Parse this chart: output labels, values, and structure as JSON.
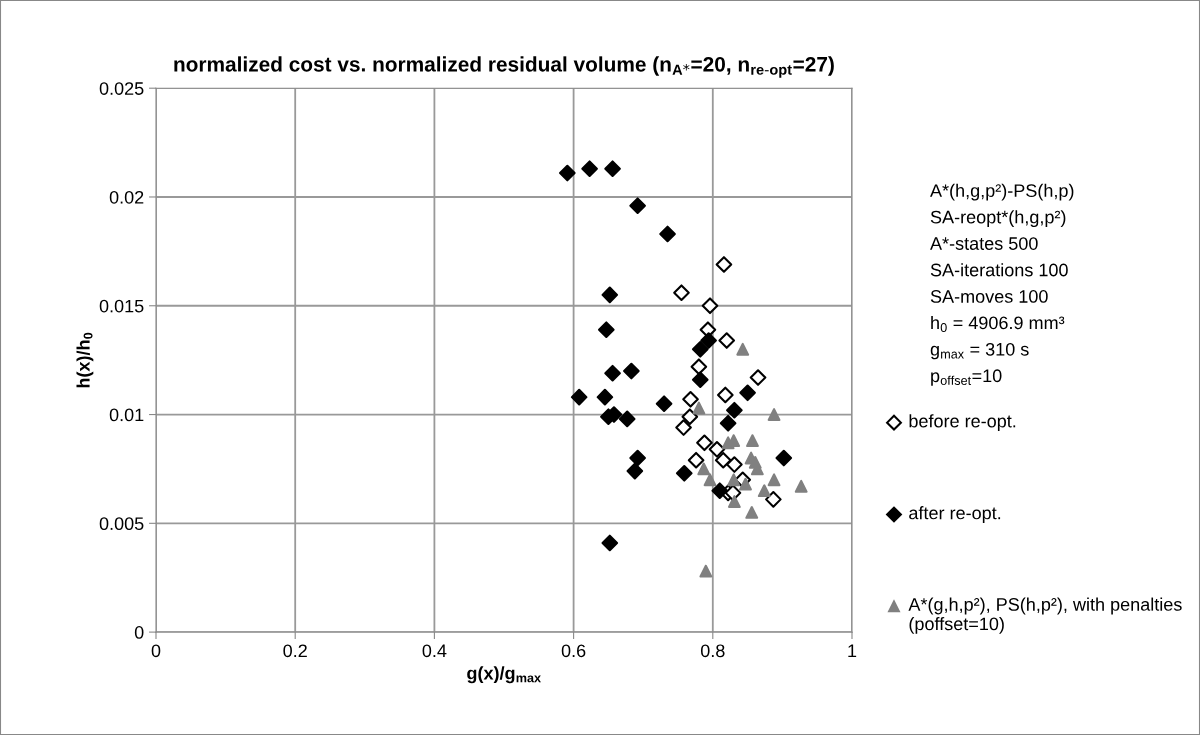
{
  "chart_data": {
    "type": "scatter",
    "title": "normalized cost vs. normalized residual volume (n$_{A*}$=20, n$_{re-opt}$=27)",
    "xlabel": "g(x)/g$_{max}$",
    "ylabel": "h(x)/h$_{0}$",
    "xlim": [
      0,
      1
    ],
    "ylim": [
      0,
      0.025
    ],
    "xticks": [
      0,
      0.2,
      0.4,
      0.6,
      0.8,
      1
    ],
    "yticks": [
      0,
      0.005,
      0.01,
      0.015,
      0.02,
      0.025
    ],
    "grid": true,
    "legend": "right",
    "annotations": [
      "A*(h,g,p²)-PS(h,p)",
      "SA-reopt*(h,g,p²)",
      "A*-states 500",
      "SA-iterations 100",
      "SA-moves 100",
      "h$_{0}$ = 4906.9 mm³",
      "g$_{max}$ = 310 s",
      "p$_{offset}$=10"
    ],
    "series": [
      {
        "name": "before re-opt.",
        "color": "#ffffff",
        "marker": "diamond",
        "x": [
          0.816,
          0.755,
          0.796,
          0.793,
          0.82,
          0.78,
          0.865,
          0.818,
          0.768,
          0.767,
          0.758,
          0.788,
          0.806,
          0.776,
          0.815,
          0.831,
          0.843,
          0.887,
          0.822,
          0.829
        ],
        "values": [
          0.0169,
          0.0156,
          0.015,
          0.0139,
          0.0134,
          0.0122,
          0.0117,
          0.0109,
          0.0107,
          0.0099,
          0.0094,
          0.0087,
          0.0084,
          0.0079,
          0.0079,
          0.0077,
          0.007,
          0.0061,
          0.0064,
          0.0064
        ]
      },
      {
        "name": "after re-opt.",
        "color": "#000000",
        "marker": "diamond",
        "x": [
          0.591,
          0.623,
          0.656,
          0.692,
          0.735,
          0.652,
          0.647,
          0.782,
          0.794,
          0.656,
          0.683,
          0.782,
          0.608,
          0.645,
          0.73,
          0.65,
          0.658,
          0.677,
          0.85,
          0.831,
          0.822,
          0.692,
          0.688,
          0.759,
          0.902,
          0.81,
          0.652
        ],
        "values": [
          0.0211,
          0.0213,
          0.0213,
          0.0196,
          0.0183,
          0.0155,
          0.0139,
          0.013,
          0.0134,
          0.0119,
          0.012,
          0.0116,
          0.0108,
          0.0108,
          0.0105,
          0.0099,
          0.01,
          0.0098,
          0.011,
          0.0102,
          0.0096,
          0.008,
          0.0074,
          0.0073,
          0.008,
          0.0065,
          0.0041
        ]
      },
      {
        "name": "A*(g,h,p²), PS(h,p²), with penalties (poffset=10)",
        "color": "#808080",
        "marker": "triangle",
        "x": [
          0.843,
          0.78,
          0.888,
          0.822,
          0.83,
          0.857,
          0.855,
          0.861,
          0.864,
          0.787,
          0.796,
          0.83,
          0.847,
          0.888,
          0.874,
          0.927,
          0.831,
          0.856,
          0.79
        ],
        "values": [
          0.013,
          0.0103,
          0.01,
          0.0087,
          0.0088,
          0.0088,
          0.008,
          0.0078,
          0.0075,
          0.0075,
          0.007,
          0.007,
          0.0068,
          0.007,
          0.0065,
          0.0067,
          0.006,
          0.0055,
          0.0028
        ]
      }
    ]
  }
}
